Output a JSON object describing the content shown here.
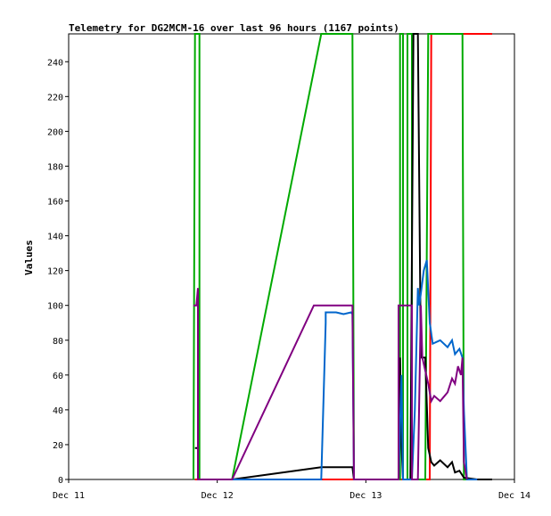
{
  "chart_data": {
    "type": "line",
    "title": "Telemetry for DG2MCM-16 over last 96 hours (1167 points)",
    "ylabel": "Values",
    "xlabel": "",
    "ylim": [
      0,
      256
    ],
    "xlim": [
      0,
      3
    ],
    "y_ticks": [
      0,
      20,
      40,
      60,
      80,
      100,
      120,
      140,
      160,
      180,
      200,
      220,
      240
    ],
    "x_ticks": [
      {
        "x": 0,
        "label": "Dec 11"
      },
      {
        "x": 1,
        "label": "Dec 12"
      },
      {
        "x": 2,
        "label": "Dec 13"
      },
      {
        "x": 3,
        "label": "Dec 14"
      }
    ],
    "grid": false,
    "legend": "none",
    "series": [
      {
        "color": "#ff0000",
        "points": [
          [
            0.85,
            0
          ],
          [
            1.7,
            0
          ],
          [
            1.72,
            0
          ],
          [
            1.9,
            0
          ],
          [
            2.22,
            0
          ],
          [
            2.38,
            0
          ],
          [
            2.43,
            0
          ],
          [
            2.44,
            256
          ],
          [
            2.46,
            256
          ],
          [
            2.75,
            256
          ],
          [
            2.85,
            256
          ]
        ]
      },
      {
        "color": "#00aa00",
        "points": [
          [
            0.84,
            0
          ],
          [
            0.85,
            256
          ],
          [
            0.88,
            256
          ],
          [
            0.88,
            0
          ],
          [
            1.1,
            0
          ],
          [
            1.7,
            256
          ],
          [
            1.91,
            256
          ],
          [
            1.92,
            0
          ],
          [
            2.23,
            0
          ],
          [
            2.23,
            256
          ],
          [
            2.25,
            256
          ],
          [
            2.25,
            0
          ],
          [
            2.28,
            0
          ],
          [
            2.28,
            256
          ],
          [
            2.31,
            256
          ],
          [
            2.31,
            0
          ],
          [
            2.4,
            0
          ],
          [
            2.42,
            256
          ],
          [
            2.45,
            256
          ],
          [
            2.46,
            256
          ],
          [
            2.65,
            256
          ],
          [
            2.66,
            0
          ],
          [
            2.75,
            0
          ]
        ]
      },
      {
        "color": "#000000",
        "points": [
          [
            0.85,
            18
          ],
          [
            0.87,
            18
          ],
          [
            0.87,
            0
          ],
          [
            1.1,
            0
          ],
          [
            1.7,
            7
          ],
          [
            1.91,
            7
          ],
          [
            1.92,
            0
          ],
          [
            2.22,
            0
          ],
          [
            2.23,
            70
          ],
          [
            2.24,
            20
          ],
          [
            2.25,
            0
          ],
          [
            2.3,
            0
          ],
          [
            2.32,
            256
          ],
          [
            2.35,
            256
          ],
          [
            2.37,
            70
          ],
          [
            2.4,
            70
          ],
          [
            2.42,
            18
          ],
          [
            2.44,
            10
          ],
          [
            2.46,
            8
          ],
          [
            2.5,
            11
          ],
          [
            2.55,
            7
          ],
          [
            2.58,
            10
          ],
          [
            2.6,
            4
          ],
          [
            2.63,
            5
          ],
          [
            2.66,
            1
          ],
          [
            2.75,
            0
          ],
          [
            2.85,
            0
          ]
        ]
      },
      {
        "color": "#0066cc",
        "points": [
          [
            0.88,
            0
          ],
          [
            1.65,
            0
          ],
          [
            1.7,
            0
          ],
          [
            1.73,
            90
          ],
          [
            1.73,
            96
          ],
          [
            1.8,
            96
          ],
          [
            1.85,
            95
          ],
          [
            1.9,
            96
          ],
          [
            1.91,
            95
          ],
          [
            1.92,
            0
          ],
          [
            2.22,
            0
          ],
          [
            2.24,
            60
          ],
          [
            2.25,
            0
          ],
          [
            2.31,
            0
          ],
          [
            2.33,
            40
          ],
          [
            2.35,
            110
          ],
          [
            2.36,
            100
          ],
          [
            2.39,
            120
          ],
          [
            2.41,
            126
          ],
          [
            2.43,
            90
          ],
          [
            2.45,
            78
          ],
          [
            2.5,
            80
          ],
          [
            2.55,
            76
          ],
          [
            2.58,
            80
          ],
          [
            2.6,
            72
          ],
          [
            2.63,
            75
          ],
          [
            2.65,
            70
          ],
          [
            2.66,
            40
          ],
          [
            2.68,
            0
          ],
          [
            2.75,
            0
          ]
        ]
      },
      {
        "color": "#800080",
        "points": [
          [
            0.84,
            100
          ],
          [
            0.86,
            100
          ],
          [
            0.87,
            110
          ],
          [
            0.87,
            0
          ],
          [
            1.1,
            0
          ],
          [
            1.65,
            100
          ],
          [
            1.85,
            100
          ],
          [
            1.9,
            100
          ],
          [
            1.91,
            100
          ],
          [
            1.92,
            0
          ],
          [
            2.22,
            0
          ],
          [
            2.22,
            100
          ],
          [
            2.31,
            100
          ],
          [
            2.31,
            0
          ],
          [
            2.35,
            0
          ],
          [
            2.37,
            100
          ],
          [
            2.38,
            70
          ],
          [
            2.42,
            55
          ],
          [
            2.44,
            45
          ],
          [
            2.46,
            48
          ],
          [
            2.5,
            45
          ],
          [
            2.52,
            47
          ],
          [
            2.55,
            50
          ],
          [
            2.58,
            58
          ],
          [
            2.6,
            55
          ],
          [
            2.62,
            65
          ],
          [
            2.64,
            60
          ],
          [
            2.65,
            70
          ],
          [
            2.66,
            10
          ],
          [
            2.68,
            0
          ]
        ]
      }
    ]
  }
}
